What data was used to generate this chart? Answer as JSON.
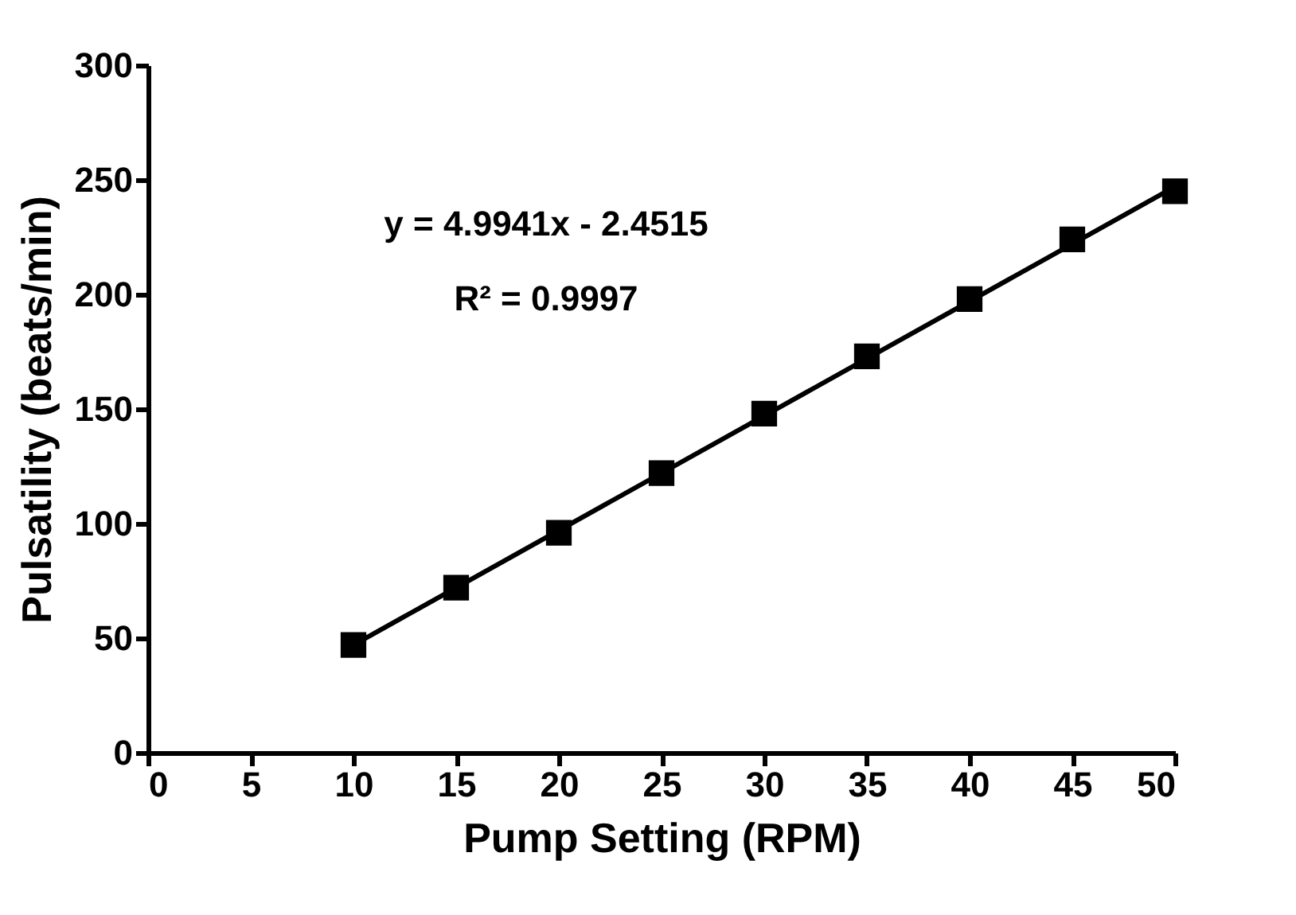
{
  "chart_data": {
    "type": "scatter",
    "xlabel": "Pump Setting (RPM)",
    "ylabel": "Pulsatility (beats/min)",
    "x": [
      10,
      15,
      20,
      25,
      30,
      35,
      40,
      45,
      50
    ],
    "series": [
      {
        "color": "#000000",
        "marker": "square",
        "values": [
          47,
          72,
          96,
          122,
          148,
          173,
          198,
          224,
          245
        ]
      },
      {
        "type": "line",
        "color": "#000000",
        "marker": "none",
        "line_style": "solid",
        "x": [
          10,
          50
        ],
        "values": [
          47,
          247
        ]
      }
    ],
    "annotations": [
      "y = 4.9941x  - 2.4515",
      "R² = 0.9997"
    ],
    "xlim": [
      0,
      50
    ],
    "xticks": [
      0,
      5,
      10,
      15,
      20,
      25,
      30,
      35,
      40,
      45,
      50
    ],
    "ylim": [
      0,
      300
    ],
    "yticks": [
      0,
      50,
      100,
      150,
      200,
      250,
      300
    ],
    "grid": false
  }
}
